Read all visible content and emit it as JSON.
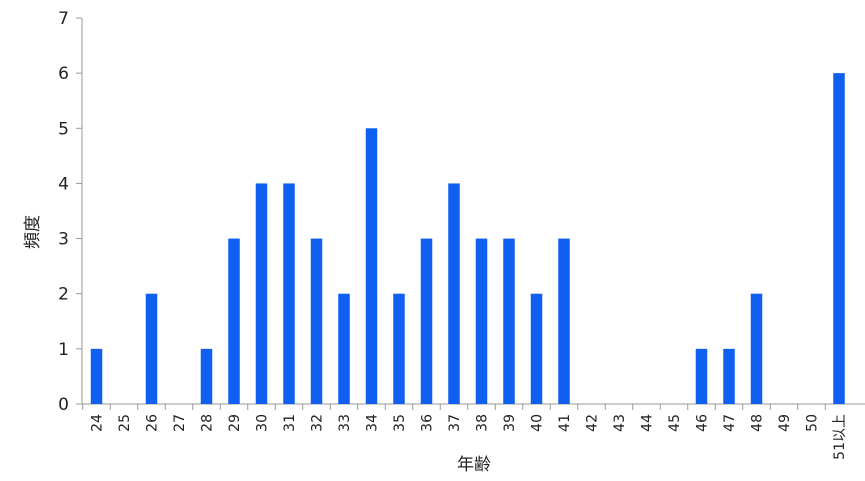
{
  "chart_data": {
    "type": "bar",
    "title": "",
    "xlabel": "年齢",
    "ylabel": "頻度",
    "ylim": [
      0,
      7
    ],
    "yticks": [
      0,
      1,
      2,
      3,
      4,
      5,
      6,
      7
    ],
    "grid": false,
    "legend": "none",
    "bar_color": "#0f5ff0",
    "categories": [
      "24",
      "25",
      "26",
      "27",
      "28",
      "29",
      "30",
      "31",
      "32",
      "33",
      "34",
      "35",
      "36",
      "37",
      "38",
      "39",
      "40",
      "41",
      "42",
      "43",
      "44",
      "45",
      "46",
      "47",
      "48",
      "49",
      "50",
      "51以上"
    ],
    "values": [
      1,
      0,
      2,
      0,
      1,
      3,
      4,
      4,
      3,
      2,
      5,
      2,
      3,
      4,
      3,
      3,
      2,
      3,
      0,
      0,
      0,
      0,
      1,
      1,
      2,
      0,
      0,
      6
    ]
  }
}
